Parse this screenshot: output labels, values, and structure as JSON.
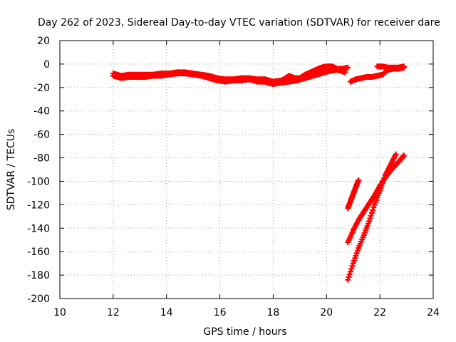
{
  "chart_data": {
    "type": "scatter",
    "title": "Day 262 of 2023, Sidereal Day-to-day VTEC variation (SDTVAR) for receiver dare",
    "xlabel": "GPS time / hours",
    "ylabel": "SDTVAR / TECUs",
    "xlim": [
      10,
      24
    ],
    "ylim": [
      -200,
      20
    ],
    "xticks": [
      "10",
      "12",
      "14",
      "16",
      "18",
      "20",
      "22",
      "24"
    ],
    "yticks": [
      "20",
      "0",
      "-20",
      "-40",
      "-60",
      "-80",
      "-100",
      "-120",
      "-140",
      "-160",
      "-180",
      "-200"
    ],
    "grid": true,
    "marker_color": "#ff0000",
    "series": [
      {
        "x": [
          12.0,
          12.3,
          12.6,
          12.9,
          13.2,
          13.5,
          13.8,
          14.1,
          14.4,
          14.7,
          15.0,
          15.3,
          15.6,
          15.9,
          16.2,
          16.5,
          16.8,
          17.1,
          17.4,
          17.7,
          18.0,
          18.3,
          18.6,
          18.9,
          19.2,
          19.5,
          19.8,
          20.1,
          20.4,
          20.7
        ],
        "y": [
          -8,
          -10,
          -9,
          -9,
          -9,
          -9,
          -8,
          -8,
          -7,
          -7,
          -8,
          -9,
          -10,
          -12,
          -13,
          -13,
          -12,
          -12,
          -13,
          -13,
          -15,
          -14,
          -13,
          -13,
          -11,
          -9,
          -6,
          -4,
          -4,
          -5
        ]
      },
      {
        "x": [
          12.0,
          12.3,
          12.6,
          12.9,
          13.2,
          13.5,
          13.8,
          14.1,
          14.4,
          14.7,
          15.0,
          15.3,
          15.6,
          15.9,
          16.2,
          16.5,
          16.8,
          17.1,
          17.4,
          17.7,
          18.0,
          18.3,
          18.6,
          18.9,
          19.2,
          19.5,
          19.8,
          20.1,
          20.4,
          20.7
        ],
        "y": [
          -10,
          -12,
          -11,
          -11,
          -11,
          -10,
          -10,
          -9,
          -8,
          -8,
          -9,
          -10,
          -12,
          -14,
          -15,
          -14,
          -14,
          -13,
          -15,
          -15,
          -17,
          -16,
          -15,
          -14,
          -12,
          -10,
          -8,
          -6,
          -5,
          -7
        ]
      },
      {
        "x": [
          17.8,
          18.0,
          18.2,
          18.4,
          18.6,
          18.8,
          19.0,
          19.2,
          19.4,
          19.6,
          19.8,
          20.0,
          20.2,
          20.4,
          20.6,
          20.8
        ],
        "y": [
          -16,
          -17,
          -15,
          -13,
          -10,
          -12,
          -12,
          -9,
          -7,
          -5,
          -3,
          -2,
          -2,
          -4,
          -4,
          -3
        ]
      },
      {
        "x": [
          20.9,
          21.1,
          21.3,
          21.5,
          21.7,
          21.9,
          22.1,
          22.3,
          22.5,
          22.7,
          22.9
        ],
        "y": [
          -15,
          -13,
          -12,
          -11,
          -11,
          -10,
          -9,
          -5,
          -4,
          -4,
          -3
        ]
      },
      {
        "x": [
          21.9,
          22.1,
          22.3,
          22.5,
          22.7,
          22.9
        ],
        "y": [
          -2,
          -2,
          -3,
          -3,
          -3,
          -2
        ]
      },
      {
        "x": [
          20.8,
          20.9,
          21.0,
          21.1,
          21.2
        ],
        "y": [
          -123,
          -117,
          -111,
          -105,
          -99
        ]
      },
      {
        "x": [
          20.8,
          21.0,
          21.2,
          21.4,
          21.6,
          21.8,
          22.0,
          22.2,
          22.4,
          22.6,
          22.8,
          22.9
        ],
        "y": [
          -152,
          -142,
          -133,
          -126,
          -119,
          -112,
          -104,
          -97,
          -91,
          -86,
          -81,
          -78
        ]
      },
      {
        "x": [
          20.8,
          21.0,
          21.2,
          21.4,
          21.6,
          21.8,
          22.0,
          22.2,
          22.4,
          22.6
        ],
        "y": [
          -184,
          -170,
          -157,
          -146,
          -134,
          -120,
          -108,
          -95,
          -86,
          -77
        ]
      }
    ]
  }
}
